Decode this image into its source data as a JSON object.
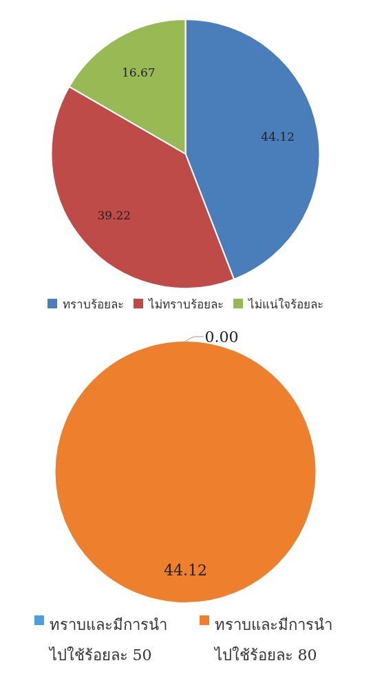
{
  "chart_data": [
    {
      "type": "pie",
      "categories": [
        "ทราบร้อยละ",
        "ไม่ทราบร้อยละ",
        "ไม่แน่ใจร้อยละ"
      ],
      "values": [
        44.12,
        39.22,
        16.67
      ],
      "colors": [
        "#4a7ebb",
        "#be4b48",
        "#98b954"
      ],
      "data_labels": true,
      "legend": "bottom"
    },
    {
      "type": "pie",
      "categories": [
        "ทราบและมีการนำไปใช้ร้อยละ 50",
        "ทราบและมีการนำไปใช้ร้อยละ 80"
      ],
      "values": [
        0,
        44.12
      ],
      "value_labels": [
        "0.00",
        "44.12"
      ],
      "colors": [
        "#4a9fdc",
        "#ee7f2d"
      ],
      "legend": "bottom"
    }
  ]
}
